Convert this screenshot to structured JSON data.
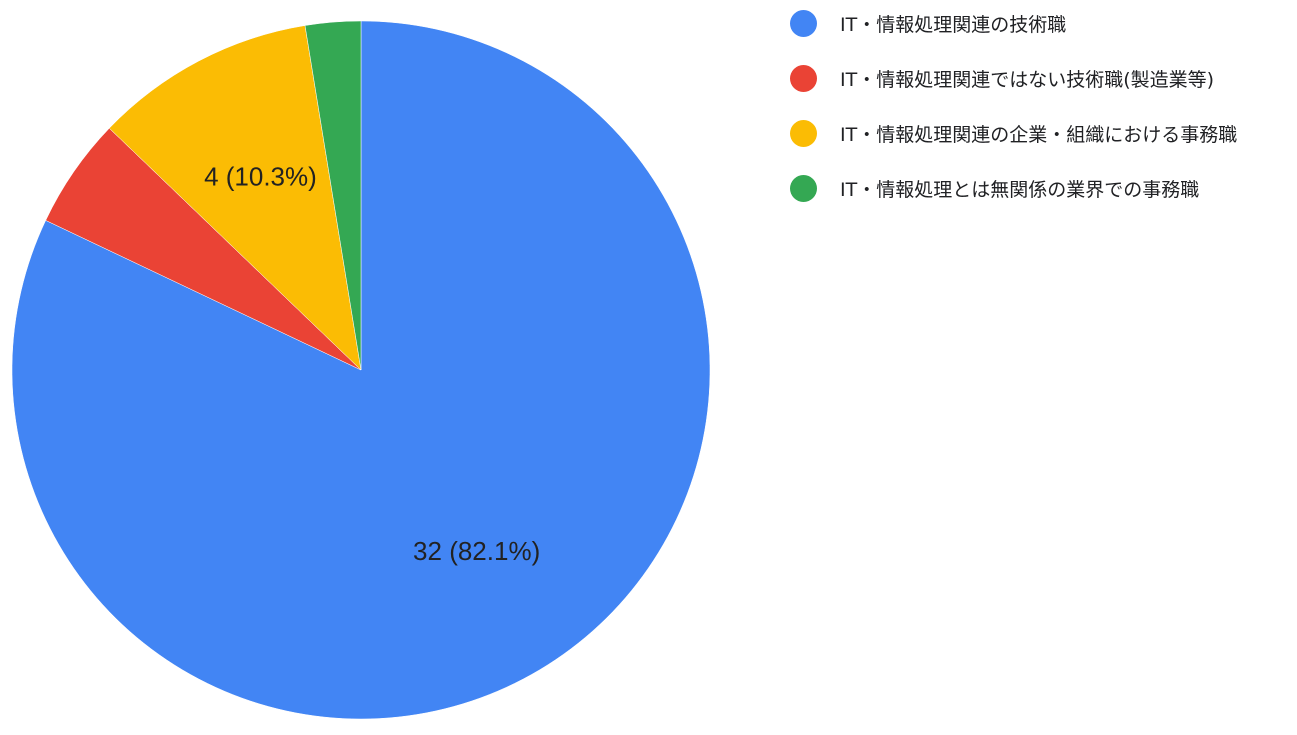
{
  "chart_data": {
    "type": "pie",
    "title": "",
    "legend_position": "right",
    "slices": [
      {
        "label": "IT・情報処理関連の技術職",
        "value": 32,
        "percent": 82.1,
        "color": "#4285F4",
        "data_label": "32 (82.1%)"
      },
      {
        "label": "IT・情報処理関連ではない技術職(製造業等)",
        "value": 2,
        "percent": 5.1,
        "color": "#EA4335",
        "data_label": ""
      },
      {
        "label": "IT・情報処理関連の企業・組織における事務職",
        "value": 4,
        "percent": 10.3,
        "color": "#FBBC04",
        "data_label": "4 (10.3%)"
      },
      {
        "label": "IT・情報処理とは無関係の業界での事務職",
        "value": 1,
        "percent": 2.6,
        "color": "#34A853",
        "data_label": ""
      }
    ]
  }
}
